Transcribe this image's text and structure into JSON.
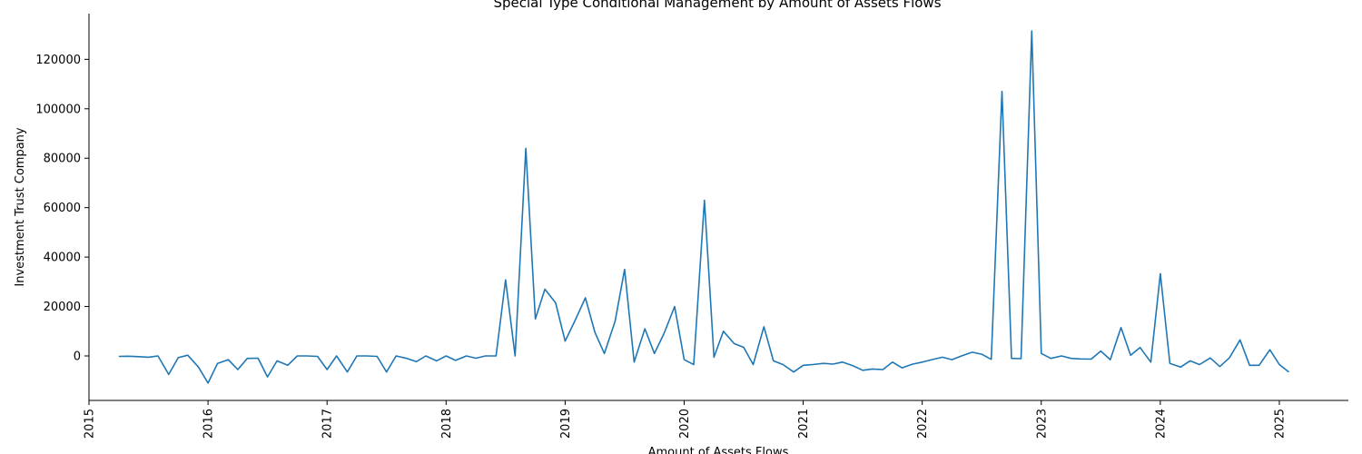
{
  "chart_data": {
    "type": "line",
    "title": "Special Type Conditional Management by Amount of Assets Flows",
    "xlabel": "Amount of Assets Flows",
    "ylabel": "Investment Trust Company",
    "xlim": [
      2015.0,
      2025.58
    ],
    "ylim": [
      -18000,
      138500
    ],
    "grid": false,
    "legend": "none",
    "color": "#1f77b4",
    "x_ticks": [
      "2015",
      "2016",
      "2017",
      "2018",
      "2019",
      "2020",
      "2021",
      "2022",
      "2023",
      "2024",
      "2025"
    ],
    "y_ticks": [
      0,
      20000,
      40000,
      60000,
      80000,
      100000,
      120000
    ],
    "x": [
      2015.25,
      2015.33,
      2015.42,
      2015.5,
      2015.58,
      2015.67,
      2015.75,
      2015.83,
      2015.92,
      2016.0,
      2016.08,
      2016.17,
      2016.25,
      2016.33,
      2016.42,
      2016.5,
      2016.58,
      2016.67,
      2016.75,
      2016.83,
      2016.92,
      2017.0,
      2017.08,
      2017.17,
      2017.25,
      2017.33,
      2017.42,
      2017.5,
      2017.58,
      2017.67,
      2017.75,
      2017.83,
      2017.92,
      2018.0,
      2018.08,
      2018.17,
      2018.25,
      2018.33,
      2018.42,
      2018.5,
      2018.58,
      2018.67,
      2018.75,
      2018.83,
      2018.92,
      2019.0,
      2019.08,
      2019.17,
      2019.25,
      2019.33,
      2019.42,
      2019.5,
      2019.58,
      2019.67,
      2019.75,
      2019.83,
      2019.92,
      2020.0,
      2020.08,
      2020.17,
      2020.25,
      2020.33,
      2020.42,
      2020.5,
      2020.58,
      2020.67,
      2020.75,
      2020.83,
      2020.92,
      2021.0,
      2021.08,
      2021.17,
      2021.25,
      2021.33,
      2021.42,
      2021.5,
      2021.58,
      2021.67,
      2021.75,
      2021.83,
      2021.92,
      2022.0,
      2022.08,
      2022.17,
      2022.25,
      2022.33,
      2022.42,
      2022.5,
      2022.58,
      2022.67,
      2022.75,
      2022.83,
      2022.92,
      2023.0,
      2023.08,
      2023.17,
      2023.25,
      2023.33,
      2023.42,
      2023.5,
      2023.58,
      2023.67,
      2023.75,
      2023.83,
      2023.92,
      2024.0,
      2024.08,
      2024.17,
      2024.25,
      2024.33,
      2024.42,
      2024.5,
      2024.58,
      2024.67,
      2024.75,
      2024.83,
      2024.92,
      2025.0,
      2025.08
    ],
    "series": [
      {
        "values": [
          -200,
          -100,
          -300,
          -500,
          0,
          -7500,
          -700,
          300,
          -4500,
          -11000,
          -3000,
          -1500,
          -5500,
          -1000,
          -900,
          -8500,
          -2000,
          -3800,
          0,
          0,
          -200,
          -5500,
          0,
          -6500,
          0,
          0,
          -200,
          -6500,
          0,
          -1000,
          -2300,
          0,
          -2000,
          0,
          -1800,
          0,
          -900,
          0,
          0,
          30800,
          0,
          84000,
          15000,
          27000,
          21500,
          6000,
          14000,
          23500,
          9500,
          1000,
          14000,
          35000,
          -2500,
          11000,
          1000,
          9000,
          20000,
          -1500,
          -3500,
          63000,
          -500,
          10000,
          5000,
          3500,
          -3500,
          11800,
          -2000,
          -3500,
          -6500,
          -3800,
          -3500,
          -3000,
          -3300,
          -2500,
          -4000,
          -5800,
          -5300,
          -5500,
          -2500,
          -4800,
          -3300,
          -2500,
          -1500,
          -500,
          -1500,
          0,
          1500,
          700,
          -1400,
          107000,
          -1000,
          -1100,
          131500,
          1000,
          -1000,
          0,
          -1000,
          -1200,
          -1300,
          2000,
          -1500,
          11500,
          300,
          3400,
          -2500,
          33300,
          -3000,
          -4500,
          -2000,
          -3500,
          -800,
          -4300,
          -800,
          6500,
          -3800,
          -3800,
          2500,
          -3500,
          -6500
        ]
      }
    ]
  }
}
